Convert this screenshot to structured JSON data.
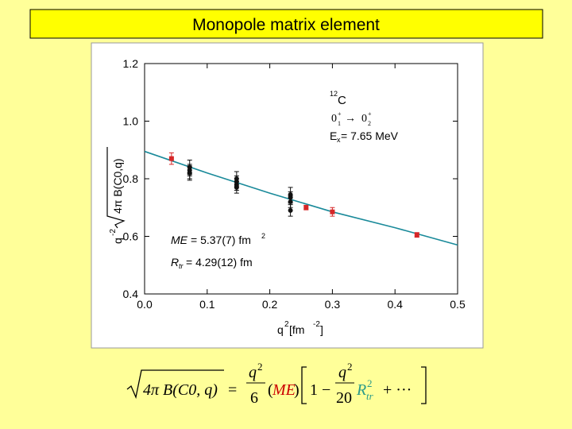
{
  "title": "Monopole matrix element",
  "chart_data": {
    "type": "scatter",
    "y_label": [
      "q",
      "-2",
      "4π B(C0,q)"
    ],
    "x_label": [
      "q",
      "2",
      " [fm",
      "-2",
      "]"
    ],
    "xlim": [
      0,
      0.5
    ],
    "ylim": [
      0.4,
      1.2
    ],
    "xticks": [
      {
        "value": 0,
        "label": "0.0"
      },
      0.1,
      0.2,
      0.3,
      0.4,
      0.5
    ],
    "yticks": [
      0.4,
      0.6,
      0.8,
      {
        "value": 1,
        "label": "1.0"
      },
      1.2
    ],
    "annotations": {
      "nucleus": [
        "12",
        "C"
      ],
      "transition": [
        "0",
        "1",
        "+",
        "→",
        "0",
        "2",
        "+"
      ],
      "energy": [
        "E",
        "x",
        " = 7.65 MeV"
      ],
      "me": [
        "ME",
        " = 5.37(7) fm",
        "2"
      ],
      "rtr": [
        "R",
        "tr",
        " = 4.29(12) fm"
      ]
    },
    "series": [
      {
        "color": "#d62728",
        "x": [
          0.043,
          0.258,
          0.3,
          0.435
        ],
        "values": [
          0.87,
          0.7,
          0.685,
          0.605
        ],
        "errors": [
          0.02,
          0.008,
          0.015,
          0.008
        ]
      },
      {
        "color": "#111111",
        "x": [
          0.072,
          0.072,
          0.072,
          0.072,
          0.147,
          0.147,
          0.147,
          0.147,
          0.233,
          0.233,
          0.233,
          0.233
        ],
        "values": [
          0.84,
          0.83,
          0.82,
          0.82,
          0.8,
          0.79,
          0.78,
          0.77,
          0.745,
          0.735,
          0.72,
          0.69
        ],
        "errors": [
          0.025,
          0.02,
          0.02,
          0.025,
          0.025,
          0.02,
          0.02,
          0.02,
          0.025,
          0.02,
          0.02,
          0.02
        ]
      }
    ],
    "fit": {
      "color": "#1a8a9a",
      "x": [
        0,
        0.1,
        0.2,
        0.3,
        0.4,
        0.5
      ],
      "values": [
        0.895,
        0.82,
        0.75,
        0.685,
        0.63,
        0.57
      ]
    }
  },
  "formula": {
    "lhs": "4π B(C0, q)",
    "eq": "=",
    "num1": "q",
    "exp1": "2",
    "den1": "6",
    "open": "(",
    "me": "ME",
    "close": ")",
    "one": "1 −",
    "num2": "q",
    "exp2": "2",
    "den2": "20",
    "r": "R",
    "exp3": "2",
    "tr": "tr",
    "rest": "+ ···"
  }
}
